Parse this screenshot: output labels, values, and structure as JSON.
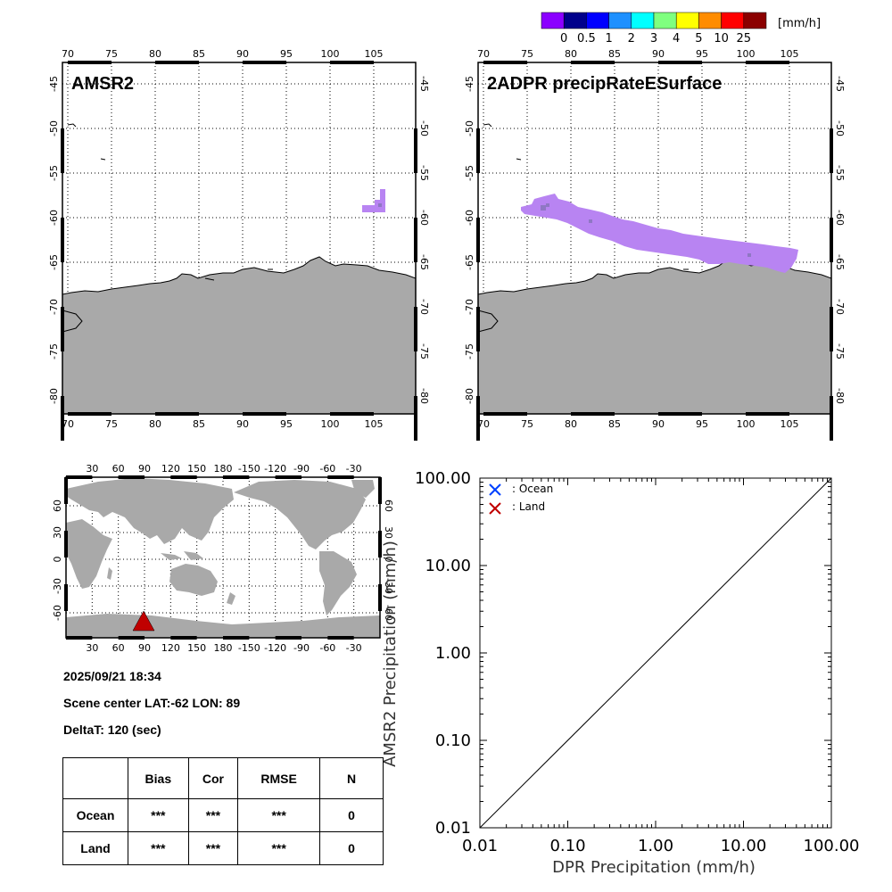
{
  "colorbar": {
    "colors": [
      "#8b00ff",
      "#00008b",
      "#0000ff",
      "#1e90ff",
      "#00ffff",
      "#7fff7f",
      "#ffff00",
      "#ff8c00",
      "#ff0000",
      "#8b0000"
    ],
    "tick_labels": [
      "0",
      "0.5",
      "1",
      "2",
      "3",
      "4",
      "5",
      "10",
      "25"
    ],
    "unit": "[mm/h]"
  },
  "map_panels": [
    {
      "title": "AMSR2",
      "lon_ticks": [
        "70",
        "75",
        "80",
        "85",
        "90",
        "95",
        "100",
        "105"
      ],
      "lat_ticks": [
        "-45",
        "-50",
        "-55",
        "-60",
        "-65",
        "-70",
        "-75",
        "-80"
      ]
    },
    {
      "title": "2ADPR precipRateESurface",
      "lon_ticks": [
        "70",
        "75",
        "80",
        "85",
        "90",
        "95",
        "100",
        "105"
      ],
      "lat_ticks": [
        "-45",
        "-50",
        "-55",
        "-60",
        "-65",
        "-70",
        "-75",
        "-80"
      ]
    }
  ],
  "colors": {
    "land": "#a9a9a9",
    "precip": "#b884f2",
    "precip_dark": "#8f77c4",
    "marker": "#c00000",
    "ocean_marker": "#0040ff",
    "land_marker": "#c00000"
  },
  "world_map": {
    "lon_ticks": [
      "30",
      "60",
      "90",
      "120",
      "150",
      "180",
      "-150",
      "-120",
      "-90",
      "-60",
      "-30"
    ],
    "lat_ticks": [
      "60",
      "30",
      "0",
      "-30",
      "-60"
    ],
    "scene_lat": -62,
    "scene_lon": 89
  },
  "info": {
    "datetime": "2025/09/21 18:34",
    "scene_center": "Scene center LAT:-62   LON:  89",
    "delta_t": "DeltaT:  120 (sec)"
  },
  "stats_table": {
    "headers": [
      "",
      "Bias",
      "Cor",
      "RMSE",
      "N"
    ],
    "rows": [
      {
        "label": "Ocean",
        "bias": "***",
        "cor": "***",
        "rmse": "***",
        "n": "0"
      },
      {
        "label": "Land",
        "bias": "***",
        "cor": "***",
        "rmse": "***",
        "n": "0"
      }
    ]
  },
  "chart_data": {
    "type": "scatter",
    "title": "",
    "xlabel": "DPR Precipitation (mm/h)",
    "ylabel": "AMSR2 Precipitation (mm/h)",
    "xscale": "log",
    "yscale": "log",
    "xlim": [
      0.01,
      100
    ],
    "ylim": [
      0.01,
      100
    ],
    "x_tick_labels": [
      "0.01",
      "0.10",
      "1.00",
      "10.00",
      "100.00"
    ],
    "y_tick_labels": [
      "0.01",
      "0.10",
      "1.00",
      "10.00",
      "100.00"
    ],
    "tick_values": [
      0.01,
      0.1,
      1,
      10,
      100
    ],
    "series": [
      {
        "name": ": Ocean",
        "marker": "x",
        "x": [],
        "y": []
      },
      {
        "name": ": Land",
        "marker": "x",
        "x": [],
        "y": []
      }
    ],
    "reference_line": "1:1",
    "legend": "top-left"
  }
}
